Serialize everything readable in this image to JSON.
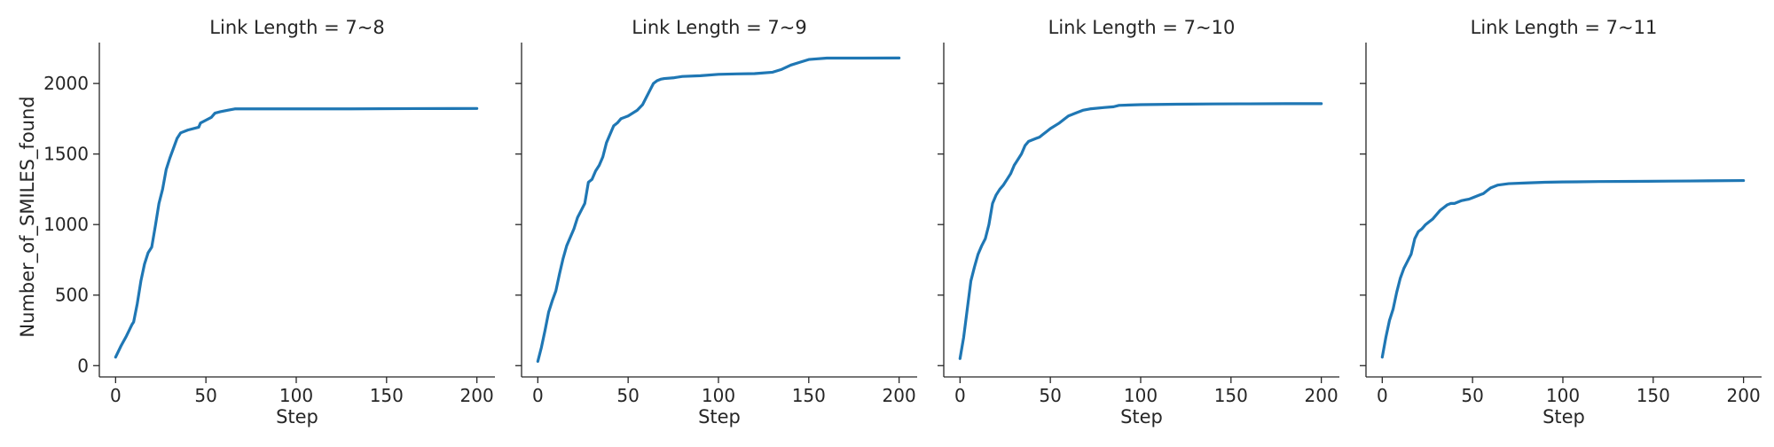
{
  "chart_data": {
    "type": "line",
    "ylabel": "Number_of_SMILES_found",
    "xlabel": "Step",
    "xlim": [
      -9,
      210
    ],
    "ylim": [
      -80,
      2290
    ],
    "x_ticks": [
      0,
      50,
      100,
      150,
      200
    ],
    "y_ticks": [
      0,
      500,
      1000,
      1500,
      2000
    ],
    "grid": false,
    "colors": {
      "line": "#1f77b4",
      "axes": "#262626"
    },
    "panels": [
      {
        "title": "Link Length = 7~8",
        "x": [
          0,
          3,
          6,
          9,
          10,
          12,
          14,
          16,
          18,
          20,
          22,
          24,
          26,
          28,
          30,
          32,
          34,
          36,
          40,
          46,
          47,
          50,
          53,
          55,
          58,
          62,
          66,
          70,
          100,
          130,
          165,
          200
        ],
        "y": [
          60,
          140,
          210,
          290,
          310,
          440,
          600,
          720,
          800,
          840,
          990,
          1150,
          1250,
          1390,
          1470,
          1540,
          1610,
          1650,
          1670,
          1690,
          1720,
          1740,
          1760,
          1790,
          1800,
          1810,
          1820,
          1820,
          1820,
          1820,
          1822,
          1823
        ]
      },
      {
        "title": "Link Length = 7~9",
        "x": [
          0,
          2,
          4,
          6,
          8,
          10,
          12,
          14,
          16,
          18,
          20,
          22,
          24,
          26,
          28,
          30,
          32,
          34,
          36,
          38,
          40,
          42,
          44,
          46,
          48,
          50,
          55,
          58,
          60,
          62,
          64,
          66,
          68,
          70,
          75,
          80,
          90,
          100,
          110,
          120,
          130,
          135,
          140,
          145,
          150,
          160,
          180,
          200
        ],
        "y": [
          30,
          130,
          250,
          380,
          460,
          530,
          650,
          760,
          850,
          910,
          970,
          1050,
          1100,
          1150,
          1300,
          1320,
          1380,
          1420,
          1480,
          1580,
          1640,
          1700,
          1720,
          1750,
          1760,
          1770,
          1810,
          1850,
          1900,
          1950,
          2000,
          2020,
          2030,
          2035,
          2040,
          2050,
          2055,
          2065,
          2068,
          2070,
          2080,
          2100,
          2130,
          2150,
          2170,
          2180,
          2180,
          2181
        ]
      },
      {
        "title": "Link Length = 7~10",
        "x": [
          0,
          2,
          4,
          6,
          8,
          10,
          12,
          14,
          16,
          18,
          20,
          22,
          24,
          26,
          28,
          30,
          32,
          34,
          36,
          38,
          40,
          42,
          44,
          46,
          48,
          50,
          55,
          58,
          60,
          64,
          68,
          72,
          80,
          85,
          88,
          100,
          120,
          140,
          160,
          180,
          200
        ],
        "y": [
          50,
          200,
          400,
          600,
          700,
          790,
          850,
          900,
          1000,
          1150,
          1210,
          1250,
          1280,
          1320,
          1360,
          1420,
          1460,
          1500,
          1560,
          1590,
          1600,
          1610,
          1620,
          1640,
          1660,
          1680,
          1720,
          1750,
          1770,
          1790,
          1810,
          1820,
          1830,
          1835,
          1845,
          1850,
          1853,
          1855,
          1856,
          1857,
          1857
        ]
      },
      {
        "title": "Link Length = 7~11",
        "x": [
          0,
          2,
          4,
          6,
          8,
          10,
          12,
          14,
          16,
          18,
          20,
          22,
          24,
          26,
          28,
          30,
          32,
          34,
          36,
          38,
          40,
          42,
          44,
          46,
          48,
          50,
          52,
          54,
          56,
          58,
          60,
          62,
          64,
          70,
          80,
          90,
          100,
          120,
          140,
          160,
          180,
          200
        ],
        "y": [
          60,
          200,
          320,
          400,
          520,
          620,
          690,
          740,
          790,
          900,
          950,
          970,
          1000,
          1020,
          1040,
          1070,
          1100,
          1120,
          1140,
          1150,
          1150,
          1160,
          1170,
          1175,
          1180,
          1190,
          1200,
          1210,
          1220,
          1240,
          1260,
          1270,
          1280,
          1290,
          1295,
          1300,
          1302,
          1305,
          1306,
          1308,
          1310,
          1312
        ]
      }
    ]
  }
}
